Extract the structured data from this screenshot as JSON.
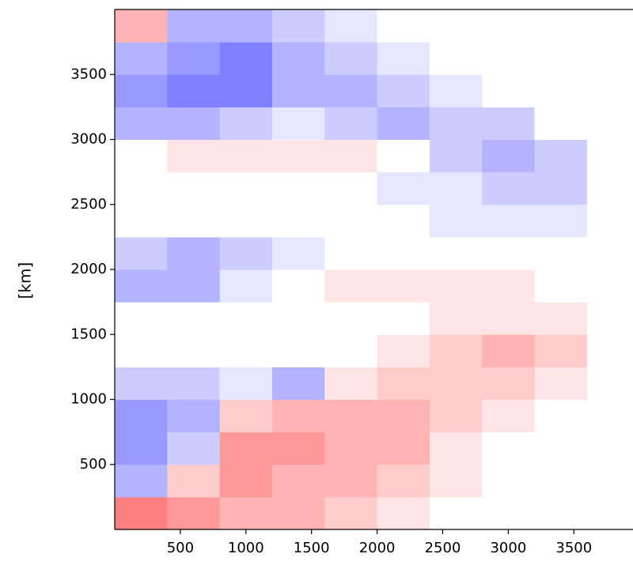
{
  "chart_data": {
    "type": "heatmap",
    "y_label": "[km]",
    "x": [
      200,
      600,
      1000,
      1400,
      1800,
      2200,
      2600,
      3000,
      3400,
      3800
    ],
    "y": [
      125,
      375,
      625,
      875,
      1125,
      1375,
      1625,
      1875,
      2125,
      2375,
      2625,
      2875,
      3125,
      3375,
      3625,
      3875
    ],
    "z": [
      [
        0.5,
        0.4,
        0.3,
        0.3,
        0.2,
        0.1,
        0,
        0,
        0,
        0
      ],
      [
        -0.3,
        0.2,
        0.4,
        0.3,
        0.3,
        0.2,
        0.1,
        0,
        0,
        0
      ],
      [
        -0.4,
        -0.2,
        0.4,
        0.4,
        0.3,
        0.3,
        0.1,
        0,
        0,
        0
      ],
      [
        -0.4,
        -0.3,
        0.2,
        0.3,
        0.3,
        0.3,
        0.2,
        0.1,
        0,
        0
      ],
      [
        -0.2,
        -0.2,
        -0.1,
        -0.3,
        0.1,
        0.2,
        0.2,
        0.2,
        0.1,
        0
      ],
      [
        0,
        0,
        0,
        0,
        0,
        0.1,
        0.2,
        0.3,
        0.2,
        0
      ],
      [
        0,
        0,
        0,
        0,
        0,
        0,
        0.1,
        0.1,
        0.1,
        0
      ],
      [
        -0.3,
        -0.3,
        -0.1,
        0,
        0.1,
        0.1,
        0.1,
        0.1,
        0,
        0
      ],
      [
        -0.2,
        -0.3,
        -0.2,
        -0.1,
        0,
        0,
        0,
        0,
        0,
        0
      ],
      [
        0,
        0,
        0,
        0,
        0,
        0,
        -0.1,
        -0.1,
        -0.1,
        0
      ],
      [
        0,
        0,
        0,
        0,
        0,
        -0.1,
        -0.1,
        -0.2,
        -0.2,
        0
      ],
      [
        0,
        0.1,
        0.1,
        0.1,
        0.1,
        0,
        -0.2,
        -0.3,
        -0.2,
        0
      ],
      [
        -0.3,
        -0.3,
        -0.2,
        -0.1,
        -0.2,
        -0.3,
        -0.2,
        -0.2,
        0,
        0
      ],
      [
        -0.4,
        -0.5,
        -0.5,
        -0.3,
        -0.3,
        -0.2,
        -0.1,
        0,
        0,
        0
      ],
      [
        -0.3,
        -0.4,
        -0.5,
        -0.3,
        -0.2,
        -0.1,
        0,
        0,
        0,
        0
      ],
      [
        0.3,
        -0.3,
        -0.3,
        -0.2,
        -0.1,
        0,
        0,
        0,
        0,
        0
      ]
    ],
    "cmap": "bwr",
    "zlim": [
      -1,
      1
    ],
    "xlim": [
      0,
      3950
    ],
    "ylim": [
      0,
      4000
    ],
    "xticks": [
      500,
      1000,
      1500,
      2000,
      2500,
      3000,
      3500
    ],
    "yticks": [
      500,
      1000,
      1500,
      2000,
      2500,
      3000,
      3500
    ]
  }
}
